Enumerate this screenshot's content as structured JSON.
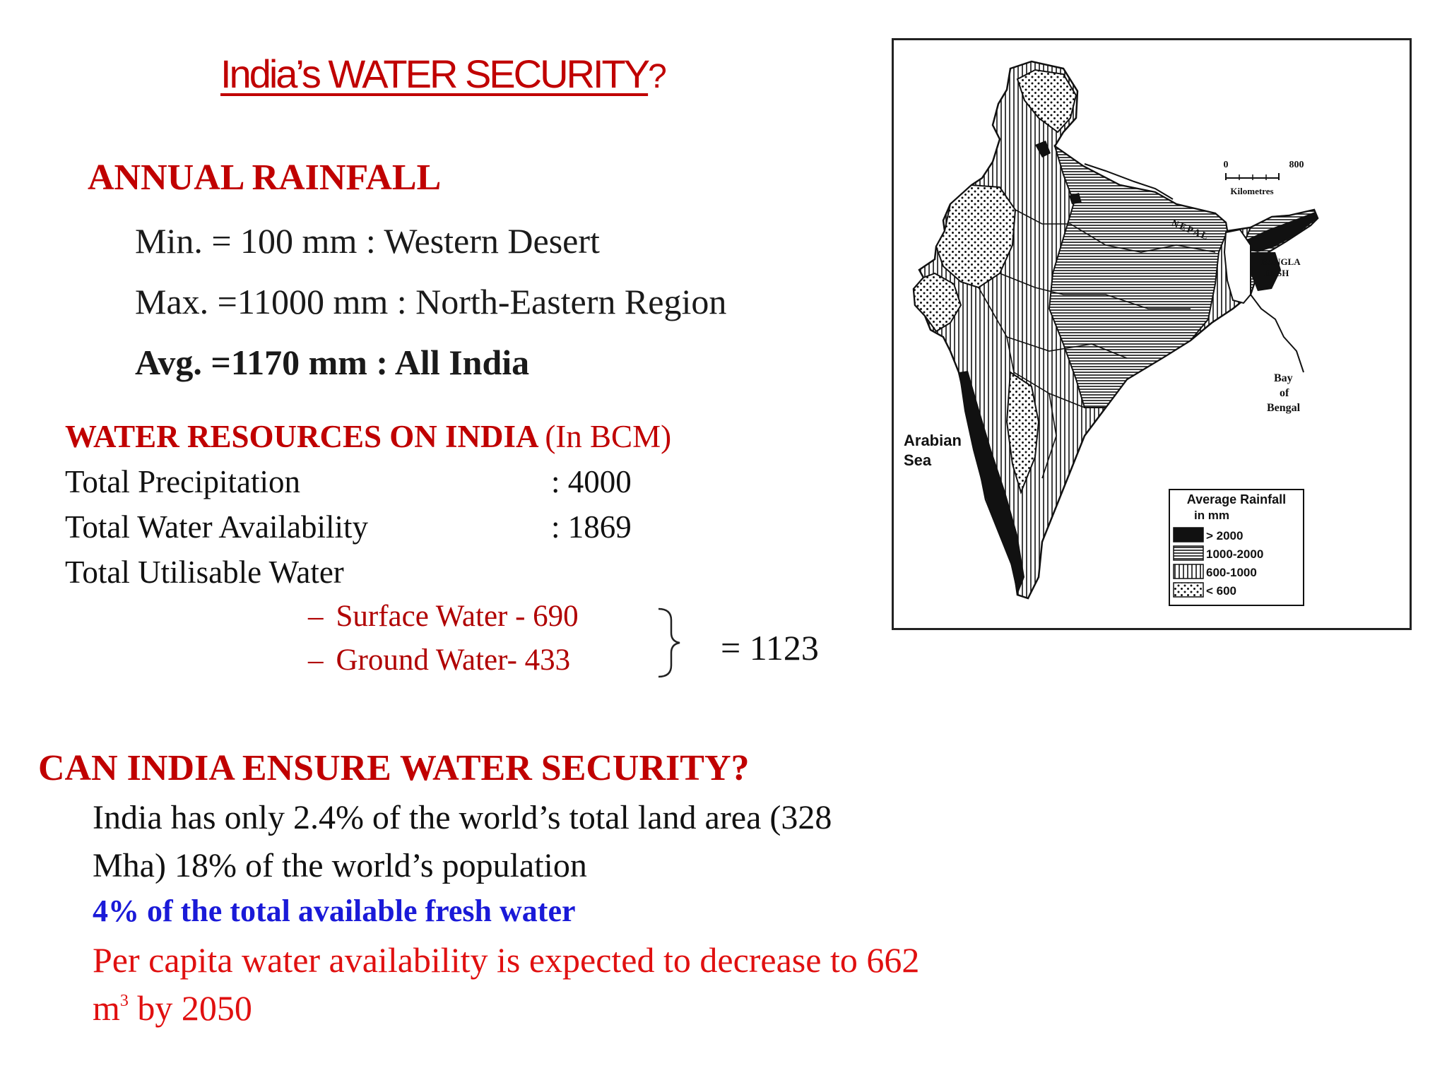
{
  "title": {
    "main": "India’s WATER SECURITY",
    "suffix": "?"
  },
  "rainfall": {
    "heading": "ANNUAL RAINFALL",
    "lines": [
      "Min. = 100 mm : Western Desert",
      "Max. =11000 mm : North-Eastern Region",
      "Avg. =1170 mm : All India"
    ]
  },
  "resources": {
    "heading": "WATER RESOURCES ON INDIA",
    "unit": "(In BCM)",
    "rows": [
      {
        "label": "Total  Precipitation",
        "value": ": 4000"
      },
      {
        "label": "Total Water Availability",
        "value": ": 1869"
      },
      {
        "label": "Total Utilisable Water",
        "value": ""
      }
    ],
    "bullets": [
      {
        "dash": "–",
        "text": "Surface Water - 690"
      },
      {
        "dash": "–",
        "text": "Ground Water-  433"
      }
    ],
    "sum": "= 1123"
  },
  "question": {
    "heading": "CAN INDIA ENSURE WATER SECURITY?",
    "line1": "India has only 2.4% of the world’s total land area (328",
    "line2": "Mha)  18% of the world’s population",
    "blue_line": "4% of the total available fresh water",
    "red_line1": "Per capita water availability is expected to decrease to 662",
    "red_line2_pre": "m",
    "red_line2_sup": "3",
    "red_line2_post": " by 2050"
  },
  "map": {
    "scale": {
      "zero": "0",
      "max": "800",
      "unit": "Kilometres"
    },
    "labels": {
      "nepal": "NEPAL",
      "bangla1": "BANGLA",
      "bangla2": "DESH",
      "bay1": "Bay",
      "bay2": "of",
      "bay3": "Bengal",
      "arabian1": "Arabian",
      "arabian2": "Sea"
    },
    "legend": {
      "title1": "Average Rainfall",
      "title2": "in mm",
      "items": [
        "> 2000",
        "1000-2000",
        "600-1000",
        "< 600"
      ]
    },
    "colors": {
      "ink": "#111111",
      "title_red": "#c00000",
      "blue": "#1a1ad8"
    }
  }
}
